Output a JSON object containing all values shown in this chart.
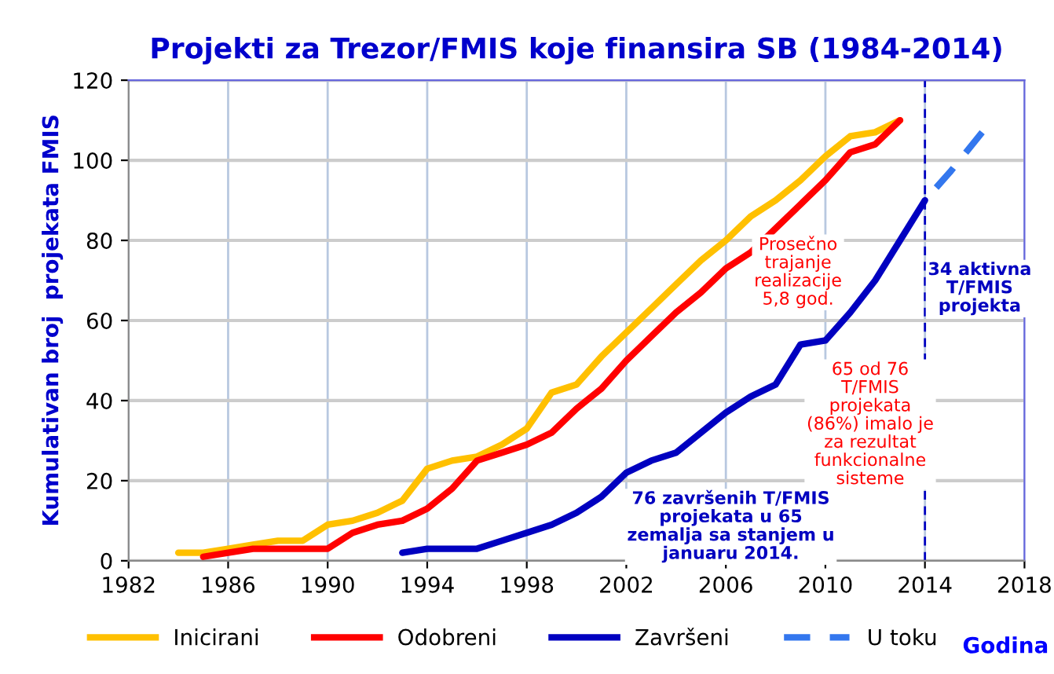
{
  "chart_data": {
    "type": "line",
    "title": "Projekti za Trezor/FMIS koje finansira SB (1984-2014)",
    "xlabel": "Godina",
    "ylabel": "Kumulativan broj  projekata FMIS",
    "xlim": [
      1982,
      2018
    ],
    "xticks": [
      1982,
      1986,
      1990,
      1994,
      1998,
      2002,
      2006,
      2010,
      2014,
      2018
    ],
    "ylim": [
      0,
      120
    ],
    "yticks": [
      0,
      20,
      40,
      60,
      80,
      100,
      120
    ],
    "grid": true,
    "legend": "bottom",
    "marker": "none",
    "series": [
      {
        "name": "Inicirani",
        "color": "#ffc000",
        "x": [
          1984,
          1985,
          1986,
          1987,
          1988,
          1989,
          1990,
          1991,
          1992,
          1993,
          1994,
          1995,
          1996,
          1997,
          1998,
          1999,
          2000,
          2001,
          2002,
          2003,
          2004,
          2005,
          2006,
          2007,
          2008,
          2009,
          2010,
          2011,
          2012,
          2013
        ],
        "values": [
          2,
          2,
          3,
          4,
          5,
          5,
          9,
          10,
          12,
          15,
          23,
          25,
          26,
          29,
          33,
          42,
          44,
          51,
          57,
          63,
          69,
          75,
          80,
          86,
          90,
          95,
          101,
          106,
          107,
          110
        ]
      },
      {
        "name": "Odobreni",
        "color": "#ff0000",
        "x": [
          1985,
          1986,
          1987,
          1988,
          1989,
          1990,
          1991,
          1992,
          1993,
          1994,
          1995,
          1996,
          1997,
          1998,
          1999,
          2000,
          2001,
          2002,
          2003,
          2004,
          2005,
          2006,
          2007,
          2008,
          2009,
          2010,
          2011,
          2012,
          2013
        ],
        "values": [
          1,
          2,
          3,
          3,
          3,
          3,
          7,
          9,
          10,
          13,
          18,
          25,
          27,
          29,
          32,
          38,
          43,
          50,
          56,
          62,
          67,
          73,
          77,
          83,
          89,
          95,
          102,
          104,
          110
        ]
      },
      {
        "name": "Završeni",
        "color": "#0000c0",
        "x": [
          1993,
          1994,
          1995,
          1996,
          1997,
          1998,
          1999,
          2000,
          2001,
          2002,
          2003,
          2004,
          2005,
          2006,
          2007,
          2008,
          2009,
          2010,
          2011,
          2012,
          2013,
          2014
        ],
        "values": [
          2,
          3,
          3,
          3,
          5,
          7,
          9,
          12,
          16,
          22,
          25,
          27,
          32,
          37,
          41,
          44,
          54,
          55,
          62,
          70,
          80,
          90
        ]
      },
      {
        "name": "U toku",
        "color": "#3377ee",
        "line_style": "dashed",
        "x": [
          2014,
          2015,
          2016.3
        ],
        "values": [
          90,
          97,
          107
        ]
      }
    ],
    "ref_lines": [
      {
        "axis": "x",
        "value": 2014,
        "color": "#0000c0",
        "line_style": "dashed"
      }
    ],
    "annotations": [
      "Prosečno\ntrajanje\nrealizacije\n5,8 god.",
      "34 aktivna\nT/FMIS\nprojekta",
      "65 od 76\nT/FMIS\nprojekata\n(86%) imalo je\nza rezultat\nfunkcionalne\nsisteme",
      "76 završenih T/FMIS\nprojekata u 65\nzemalja sa stanjem u\njanuaru 2014."
    ]
  }
}
